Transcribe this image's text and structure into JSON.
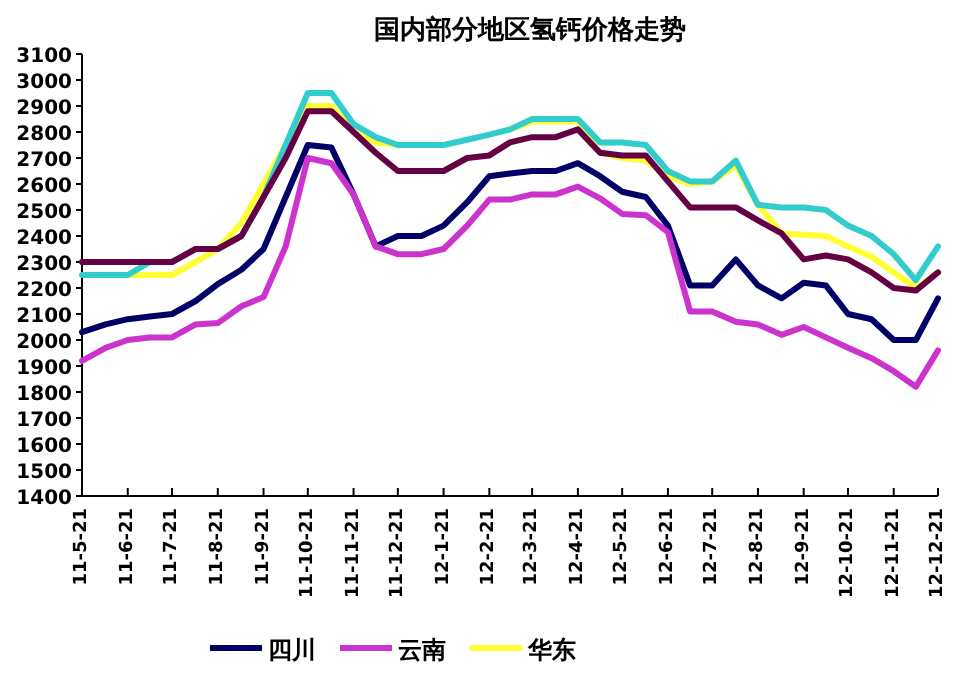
{
  "chart_data": {
    "type": "line",
    "title": "国内部分地区氢钙价格走势",
    "x": [
      "2011-05-21",
      "2011-06-06",
      "2011-06-21",
      "2011-07-06",
      "2011-07-21",
      "2011-08-06",
      "2011-08-21",
      "2011-09-06",
      "2011-09-21",
      "2011-10-06",
      "2011-10-21",
      "2011-11-06",
      "2011-11-21",
      "2011-12-06",
      "2011-12-21",
      "2012-01-06",
      "2012-01-21",
      "2012-02-06",
      "2012-02-21",
      "2012-03-06",
      "2012-03-21",
      "2012-04-06",
      "2012-04-21",
      "2012-05-06",
      "2012-05-21",
      "2012-06-06",
      "2012-06-21",
      "2012-07-06",
      "2012-07-21",
      "2012-08-06",
      "2012-08-21",
      "2012-09-06",
      "2012-09-21",
      "2012-10-06",
      "2012-10-21",
      "2012-11-06",
      "2012-11-21",
      "2012-12-06",
      "2012-12-21"
    ],
    "series": [
      {
        "name": "四川",
        "color": "#000066",
        "values": [
          2030,
          2060,
          2080,
          2090,
          2100,
          2150,
          2215,
          2270,
          2350,
          2550,
          2750,
          2740,
          2560,
          2360,
          2400,
          2400,
          2440,
          2530,
          2630,
          2640,
          2650,
          2650,
          2680,
          2630,
          2570,
          2550,
          2440,
          2210,
          2210,
          2310,
          2210,
          2160,
          2220,
          2210,
          2100,
          2080,
          2000,
          2000,
          2160
        ]
      },
      {
        "name": "云南",
        "color": "#cc33cc",
        "values": [
          1920,
          1970,
          2000,
          2010,
          2010,
          2060,
          2065,
          2130,
          2165,
          2360,
          2700,
          2680,
          2560,
          2360,
          2330,
          2330,
          2350,
          2440,
          2540,
          2540,
          2560,
          2560,
          2590,
          2545,
          2485,
          2480,
          2415,
          2110,
          2110,
          2070,
          2060,
          2020,
          2050,
          2010,
          1970,
          1930,
          1880,
          1820,
          1960
        ]
      },
      {
        "name": "华东",
        "color": "#ffff33",
        "values": [
          null,
          null,
          2250,
          2250,
          2250,
          2300,
          2350,
          2450,
          2600,
          2750,
          2900,
          2900,
          2800,
          2760,
          2750,
          null,
          null,
          null,
          null,
          2810,
          2840,
          2840,
          2840,
          2720,
          2700,
          2690,
          2630,
          2600,
          2610,
          2670,
          2520,
          2410,
          2405,
          2400,
          2360,
          2320,
          2260,
          2200,
          2260
        ]
      },
      {
        "color": "#33cccc",
        "values": [
          2250,
          2250,
          2250,
          2300,
          2300,
          2350,
          2350,
          2400,
          2550,
          2750,
          2950,
          2950,
          2830,
          2780,
          2750,
          2750,
          2750,
          2770,
          2790,
          2810,
          2850,
          2850,
          2850,
          2760,
          2760,
          2750,
          2650,
          2610,
          2610,
          2690,
          2520,
          2510,
          2510,
          2500,
          2440,
          2400,
          2330,
          2230,
          2360
        ]
      },
      {
        "color": "#660044",
        "values": [
          2300,
          2300,
          2300,
          2300,
          2300,
          2350,
          2350,
          2400,
          2550,
          2700,
          2880,
          2880,
          2800,
          2720,
          2650,
          2650,
          2650,
          2700,
          2710,
          2760,
          2780,
          2780,
          2810,
          2720,
          2710,
          2710,
          2610,
          2510,
          2510,
          2510,
          2460,
          2410,
          2310,
          2325,
          2310,
          2260,
          2200,
          2190,
          2260
        ]
      }
    ],
    "xlim": [
      "2011-05-21",
      "2012-12-21"
    ],
    "xticks": [
      {
        "value": "2011-05-21",
        "label": "11-5-21"
      },
      {
        "value": "2011-06-21",
        "label": "11-6-21"
      },
      {
        "value": "2011-07-21",
        "label": "11-7-21"
      },
      {
        "value": "2011-08-21",
        "label": "11-8-21"
      },
      {
        "value": "2011-09-21",
        "label": "11-9-21"
      },
      {
        "value": "2011-10-21",
        "label": "11-10-21"
      },
      {
        "value": "2011-11-21",
        "label": "11-11-21"
      },
      {
        "value": "2011-12-21",
        "label": "11-12-21"
      },
      {
        "value": "2012-01-21",
        "label": "12-1-21"
      },
      {
        "value": "2012-02-21",
        "label": "12-2-21"
      },
      {
        "value": "2012-03-21",
        "label": "12-3-21"
      },
      {
        "value": "2012-04-21",
        "label": "12-4-21"
      },
      {
        "value": "2012-05-21",
        "label": "12-5-21"
      },
      {
        "value": "2012-06-21",
        "label": "12-6-21"
      },
      {
        "value": "2012-07-21",
        "label": "12-7-21"
      },
      {
        "value": "2012-08-21",
        "label": "12-8-21"
      },
      {
        "value": "2012-09-21",
        "label": "12-9-21"
      },
      {
        "value": "2012-10-21",
        "label": "12-10-21"
      },
      {
        "value": "2012-11-21",
        "label": "12-11-21"
      },
      {
        "value": "2012-12-21",
        "label": "12-12-21"
      }
    ],
    "ylim": [
      1400,
      3100
    ],
    "yticks": [
      1400,
      1500,
      1600,
      1700,
      1800,
      1900,
      2000,
      2100,
      2200,
      2300,
      2400,
      2500,
      2600,
      2700,
      2800,
      2900,
      3000,
      3100
    ],
    "grid": false,
    "legend": "bottom",
    "marker": "none",
    "line_style": "solid"
  }
}
